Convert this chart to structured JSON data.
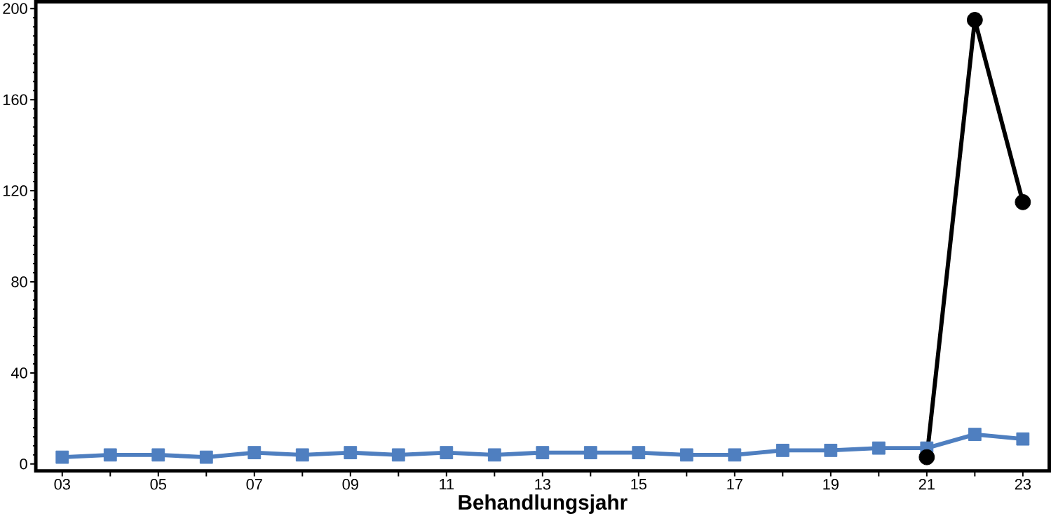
{
  "chart_data": {
    "type": "line",
    "xlabel": "Behandlungsjahr",
    "x": [
      3,
      4,
      5,
      6,
      7,
      8,
      9,
      10,
      11,
      12,
      13,
      14,
      15,
      16,
      17,
      18,
      19,
      20,
      21,
      22,
      23
    ],
    "xlim": [
      2.45,
      23.55
    ],
    "xticks": [
      {
        "value": 3,
        "label": "03"
      },
      {
        "value": 4,
        "label": null
      },
      {
        "value": 5,
        "label": "05"
      },
      {
        "value": 6,
        "label": null
      },
      {
        "value": 7,
        "label": "07"
      },
      {
        "value": 8,
        "label": null
      },
      {
        "value": 9,
        "label": "09"
      },
      {
        "value": 10,
        "label": null
      },
      {
        "value": 11,
        "label": "11"
      },
      {
        "value": 12,
        "label": null
      },
      {
        "value": 13,
        "label": "13"
      },
      {
        "value": 14,
        "label": null
      },
      {
        "value": 15,
        "label": "15"
      },
      {
        "value": 16,
        "label": null
      },
      {
        "value": 17,
        "label": "17"
      },
      {
        "value": 18,
        "label": null
      },
      {
        "value": 19,
        "label": "19"
      },
      {
        "value": 20,
        "label": null
      },
      {
        "value": 21,
        "label": "21"
      },
      {
        "value": 22,
        "label": null
      },
      {
        "value": 23,
        "label": "23"
      }
    ],
    "ylim": [
      -3,
      203
    ],
    "yticks": [
      0,
      40,
      80,
      120,
      160,
      200
    ],
    "series": [
      {
        "color": "#4f7fc0",
        "marker": "square",
        "values": [
          3,
          4,
          4,
          3,
          5,
          4,
          5,
          4,
          5,
          4,
          5,
          5,
          5,
          4,
          4,
          6,
          6,
          7,
          7,
          13,
          11
        ]
      },
      {
        "color": "#000000",
        "marker": "circle",
        "x": [
          21,
          22,
          23
        ],
        "values": [
          3,
          195,
          115
        ]
      }
    ]
  }
}
